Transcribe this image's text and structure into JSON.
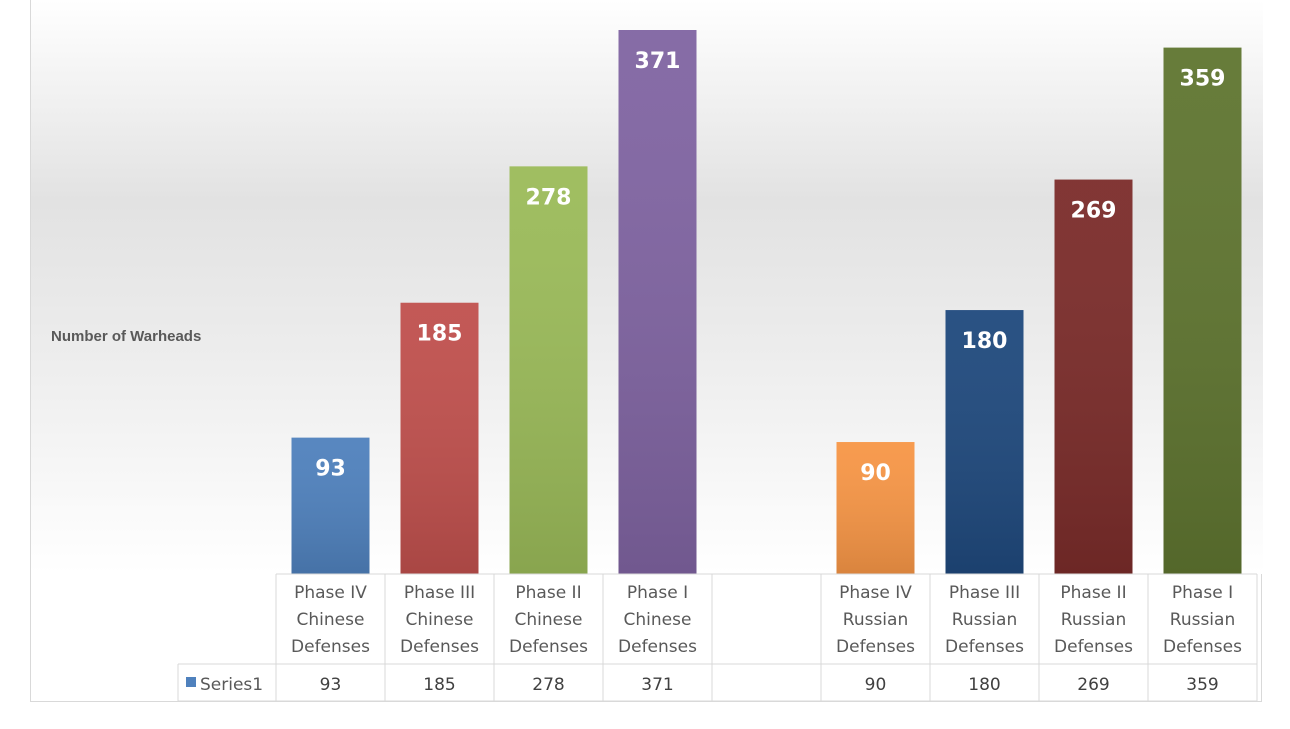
{
  "chart_data": {
    "type": "bar",
    "ylabel": "Number of Warheads",
    "xlabel": "",
    "title": "",
    "categories": [
      [
        "Phase IV",
        "Chinese",
        "Defenses"
      ],
      [
        "Phase III",
        "Chinese",
        "Defenses"
      ],
      [
        "Phase II",
        "Chinese",
        "Defenses"
      ],
      [
        "Phase I",
        "Chinese",
        "Defenses"
      ],
      [],
      [
        "Phase IV",
        "Russian",
        "Defenses"
      ],
      [
        "Phase III",
        "Russian",
        "Defenses"
      ],
      [
        "Phase II",
        "Russian",
        "Defenses"
      ],
      [
        "Phase I",
        "Russian",
        "Defenses"
      ]
    ],
    "series": [
      {
        "name": "Series1",
        "values": [
          93,
          185,
          278,
          371,
          null,
          90,
          180,
          269,
          359
        ],
        "value_labels": [
          "93",
          "185",
          "278",
          "371",
          "",
          "90",
          "180",
          "269",
          "359"
        ]
      }
    ],
    "bar_colors": [
      "#4f81bd",
      "#c0504d",
      "#9bbb59",
      "#8064a2",
      null,
      "#f79646",
      "#1f497d",
      "#7b2c2a",
      "#5f7530"
    ],
    "legend_swatch_color": "#4f81bd",
    "ylim": [
      0,
      371
    ],
    "grid": false,
    "legend": "data-table",
    "data_table": true
  }
}
